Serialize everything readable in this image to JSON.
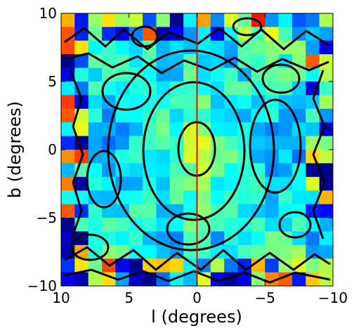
{
  "chart_data": {
    "type": "heatmap",
    "title": "",
    "xlabel": "l (degrees)",
    "ylabel": "b (degrees)",
    "xlim": [
      10,
      -10
    ],
    "ylim": [
      -10,
      10
    ],
    "x_ticks": [
      10,
      5,
      0,
      -5,
      -10
    ],
    "y_ticks": [
      10,
      5,
      0,
      -5,
      -10
    ],
    "x_tick_labels": [
      "10",
      "5",
      "0",
      "−5",
      "−10"
    ],
    "y_tick_labels": [
      "10",
      "5",
      "0",
      "−5",
      "−10"
    ],
    "grid": false,
    "legend": "none",
    "colormap": "jet",
    "overlay": "black contour lines",
    "vertical_reference_line": {
      "x": 0,
      "color": "#ff0000"
    },
    "heatmap_grid": {
      "nx": 20,
      "ny": 20,
      "x_range": [
        10,
        -10
      ],
      "y_range": [
        -10,
        10
      ]
    }
  }
}
